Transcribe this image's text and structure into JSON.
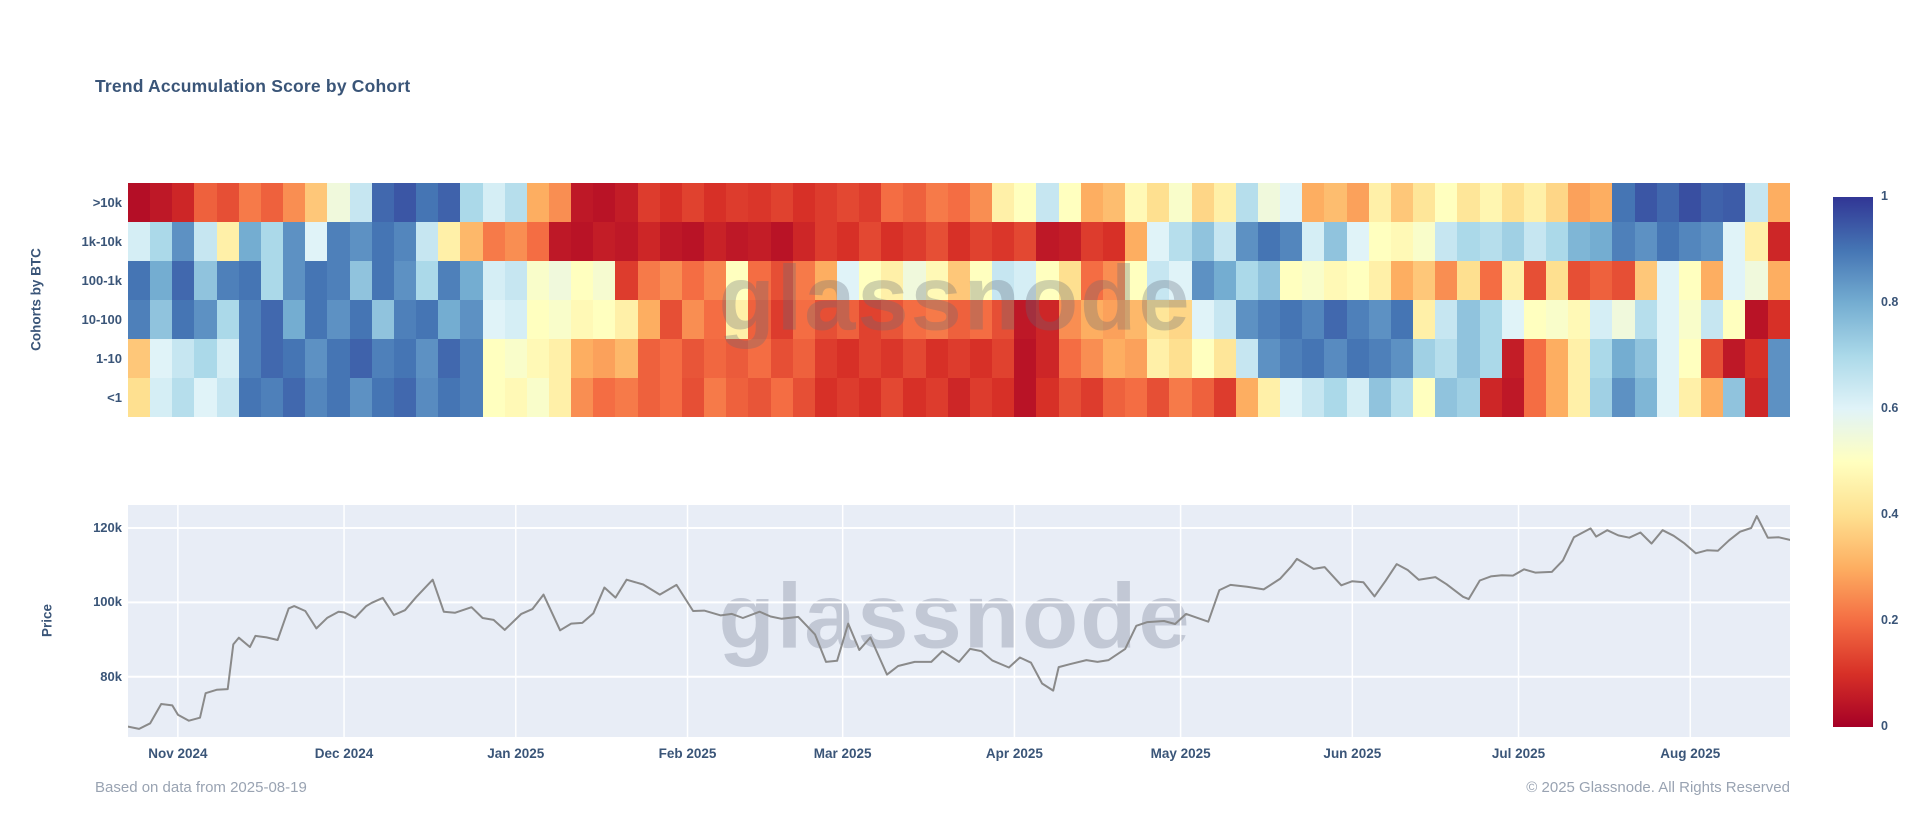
{
  "title": "Trend Accumulation Score by Cohort",
  "watermark": "glassnode",
  "footer": {
    "left": "Based on data from 2025-08-19",
    "right": "© 2025 Glassnode. All Rights Reserved"
  },
  "colors": {
    "text": "#3a5578",
    "footer_text": "#99a3b2",
    "price_line": "#8a8a8a",
    "price_panel_bg": "#e8edf6",
    "gridline": "#ffffff",
    "colormap": "RdYlBu (0=dark red, 1=dark blue)"
  },
  "heatmap_axis": {
    "y_title": "Cohorts by BTC",
    "cohorts": [
      ">10k",
      "1k-10k",
      "100-1k",
      "10-100",
      "1-10",
      "<1"
    ]
  },
  "price_axis": {
    "y_title": "Price",
    "y_ticks": [
      {
        "label": "120k",
        "value": 120
      },
      {
        "label": "100k",
        "value": 100
      },
      {
        "label": "80k",
        "value": 80
      }
    ],
    "x_ticks": [
      {
        "label": "Nov 2024",
        "day": 9
      },
      {
        "label": "Dec 2024",
        "day": 39
      },
      {
        "label": "Jan 2025",
        "day": 70
      },
      {
        "label": "Feb 2025",
        "day": 101
      },
      {
        "label": "Mar 2025",
        "day": 129
      },
      {
        "label": "Apr 2025",
        "day": 160
      },
      {
        "label": "May 2025",
        "day": 190
      },
      {
        "label": "Jun 2025",
        "day": 221
      },
      {
        "label": "Jul 2025",
        "day": 251
      },
      {
        "label": "Aug 2025",
        "day": 282
      }
    ]
  },
  "colorbar": {
    "ticks": [
      {
        "label": "1",
        "value": 1
      },
      {
        "label": "0.8",
        "value": 0.8
      },
      {
        "label": "0.6",
        "value": 0.6
      },
      {
        "label": "0.4",
        "value": 0.4
      },
      {
        "label": "0.2",
        "value": 0.2
      },
      {
        "label": "0",
        "value": 0
      }
    ],
    "zmin": 0,
    "zmax": 1
  },
  "chart_data": [
    {
      "type": "heatmap",
      "title": "Trend Accumulation Score by Cohort",
      "ylabel": "Cohorts by BTC",
      "x_range": [
        "2024-10-23",
        "2025-08-19"
      ],
      "zlim": [
        0,
        1
      ],
      "legend_position": "right colorbar",
      "rows": [
        ">10k",
        "1k-10k",
        "100-1k",
        "10-100",
        "1-10",
        "<1"
      ],
      "columns": 75,
      "values": {
        ">10k": [
          0.03,
          0.05,
          0.08,
          0.18,
          0.15,
          0.22,
          0.18,
          0.25,
          0.35,
          0.55,
          0.65,
          0.92,
          0.95,
          0.9,
          0.93,
          0.7,
          0.62,
          0.68,
          0.3,
          0.25,
          0.05,
          0.04,
          0.06,
          0.12,
          0.1,
          0.13,
          0.1,
          0.12,
          0.11,
          0.13,
          0.1,
          0.12,
          0.14,
          0.12,
          0.2,
          0.18,
          0.22,
          0.2,
          0.25,
          0.45,
          0.5,
          0.65,
          0.5,
          0.3,
          0.33,
          0.48,
          0.4,
          0.52,
          0.38,
          0.45,
          0.68,
          0.55,
          0.6,
          0.3,
          0.33,
          0.28,
          0.45,
          0.35,
          0.42,
          0.5,
          0.42,
          0.47,
          0.4,
          0.45,
          0.38,
          0.28,
          0.3,
          0.9,
          0.95,
          0.92,
          0.96,
          0.93,
          0.94,
          0.65,
          0.3
        ],
        "1k-10k": [
          0.62,
          0.7,
          0.85,
          0.65,
          0.45,
          0.8,
          0.7,
          0.85,
          0.6,
          0.88,
          0.85,
          0.9,
          0.87,
          0.65,
          0.45,
          0.32,
          0.22,
          0.25,
          0.2,
          0.05,
          0.04,
          0.06,
          0.05,
          0.08,
          0.05,
          0.04,
          0.07,
          0.05,
          0.06,
          0.04,
          0.08,
          0.12,
          0.1,
          0.14,
          0.1,
          0.12,
          0.15,
          0.1,
          0.13,
          0.11,
          0.14,
          0.05,
          0.06,
          0.12,
          0.1,
          0.3,
          0.6,
          0.68,
          0.75,
          0.65,
          0.85,
          0.9,
          0.87,
          0.62,
          0.75,
          0.6,
          0.5,
          0.48,
          0.52,
          0.65,
          0.7,
          0.68,
          0.72,
          0.65,
          0.7,
          0.78,
          0.8,
          0.88,
          0.85,
          0.9,
          0.87,
          0.85,
          0.6,
          0.45,
          0.08
        ],
        "100-1k": [
          0.9,
          0.8,
          0.92,
          0.75,
          0.88,
          0.9,
          0.7,
          0.85,
          0.9,
          0.88,
          0.75,
          0.9,
          0.85,
          0.7,
          0.88,
          0.8,
          0.62,
          0.65,
          0.52,
          0.55,
          0.5,
          0.53,
          0.12,
          0.22,
          0.25,
          0.2,
          0.24,
          0.5,
          0.2,
          0.15,
          0.22,
          0.3,
          0.6,
          0.5,
          0.45,
          0.55,
          0.48,
          0.35,
          0.5,
          0.65,
          0.62,
          0.5,
          0.4,
          0.2,
          0.25,
          0.5,
          0.65,
          0.6,
          0.85,
          0.8,
          0.7,
          0.75,
          0.5,
          0.52,
          0.48,
          0.5,
          0.45,
          0.3,
          0.35,
          0.25,
          0.4,
          0.2,
          0.45,
          0.15,
          0.4,
          0.15,
          0.18,
          0.15,
          0.35,
          0.6,
          0.5,
          0.3,
          0.6,
          0.55,
          0.3
        ],
        "10-100": [
          0.88,
          0.75,
          0.9,
          0.85,
          0.7,
          0.88,
          0.92,
          0.8,
          0.9,
          0.85,
          0.9,
          0.75,
          0.88,
          0.9,
          0.8,
          0.85,
          0.6,
          0.62,
          0.5,
          0.52,
          0.48,
          0.5,
          0.45,
          0.3,
          0.15,
          0.25,
          0.2,
          0.45,
          0.18,
          0.12,
          0.2,
          0.15,
          0.18,
          0.13,
          0.16,
          0.2,
          0.22,
          0.18,
          0.2,
          0.15,
          0.05,
          0.08,
          0.25,
          0.3,
          0.28,
          0.32,
          0.42,
          0.38,
          0.6,
          0.65,
          0.85,
          0.88,
          0.9,
          0.87,
          0.92,
          0.88,
          0.85,
          0.9,
          0.45,
          0.65,
          0.75,
          0.7,
          0.6,
          0.5,
          0.52,
          0.48,
          0.62,
          0.55,
          0.68,
          0.6,
          0.52,
          0.65,
          0.5,
          0.04,
          0.1
        ],
        "1-10": [
          0.35,
          0.6,
          0.65,
          0.7,
          0.62,
          0.88,
          0.92,
          0.9,
          0.85,
          0.9,
          0.93,
          0.88,
          0.9,
          0.85,
          0.92,
          0.88,
          0.5,
          0.52,
          0.48,
          0.45,
          0.3,
          0.28,
          0.32,
          0.18,
          0.2,
          0.16,
          0.19,
          0.17,
          0.2,
          0.15,
          0.18,
          0.12,
          0.1,
          0.13,
          0.11,
          0.14,
          0.1,
          0.12,
          0.1,
          0.13,
          0.04,
          0.08,
          0.2,
          0.25,
          0.3,
          0.28,
          0.45,
          0.4,
          0.5,
          0.42,
          0.65,
          0.85,
          0.88,
          0.9,
          0.86,
          0.9,
          0.88,
          0.85,
          0.72,
          0.68,
          0.75,
          0.7,
          0.06,
          0.2,
          0.3,
          0.45,
          0.7,
          0.8,
          0.75,
          0.6,
          0.5,
          0.15,
          0.05,
          0.1,
          0.85
        ],
        "<1": [
          0.4,
          0.62,
          0.68,
          0.6,
          0.65,
          0.9,
          0.88,
          0.92,
          0.87,
          0.9,
          0.85,
          0.9,
          0.92,
          0.86,
          0.9,
          0.88,
          0.5,
          0.48,
          0.52,
          0.45,
          0.25,
          0.2,
          0.22,
          0.18,
          0.2,
          0.15,
          0.22,
          0.18,
          0.16,
          0.2,
          0.15,
          0.1,
          0.12,
          0.1,
          0.14,
          0.1,
          0.12,
          0.08,
          0.12,
          0.1,
          0.04,
          0.1,
          0.15,
          0.12,
          0.18,
          0.2,
          0.15,
          0.22,
          0.18,
          0.12,
          0.3,
          0.45,
          0.6,
          0.65,
          0.7,
          0.62,
          0.75,
          0.68,
          0.5,
          0.75,
          0.72,
          0.08,
          0.05,
          0.2,
          0.3,
          0.45,
          0.72,
          0.85,
          0.78,
          0.6,
          0.45,
          0.3,
          0.75,
          0.08,
          0.85
        ]
      }
    },
    {
      "type": "line",
      "name": "Price",
      "ylabel": "Price",
      "ylim": [
        63,
        127
      ],
      "x_unit": "days since 2024-10-23",
      "x": [
        0,
        2,
        4,
        6,
        8,
        9,
        11,
        13,
        14,
        16,
        18,
        19,
        20,
        22,
        23,
        25,
        27,
        29,
        30,
        32,
        34,
        36,
        38,
        39,
        41,
        43,
        44,
        46,
        48,
        50,
        52,
        55,
        57,
        59,
        62,
        64,
        66,
        68,
        71,
        73,
        75,
        78,
        80,
        82,
        84,
        86,
        88,
        90,
        93,
        96,
        99,
        102,
        104,
        107,
        109,
        111,
        114,
        116,
        118,
        121,
        124,
        126,
        128,
        130,
        132,
        134,
        137,
        139,
        142,
        145,
        147,
        150,
        152,
        154,
        156,
        159,
        161,
        163,
        165,
        167,
        168,
        170,
        173,
        175,
        177,
        180,
        182,
        184,
        187,
        189,
        191,
        195,
        197,
        199,
        202,
        205,
        208,
        210,
        211,
        214,
        216,
        219,
        221,
        223,
        225,
        227,
        229,
        231,
        233,
        236,
        238,
        241,
        242,
        244,
        246,
        248,
        250,
        252,
        254,
        257,
        259,
        261,
        264,
        265,
        267,
        269,
        271,
        273,
        275,
        277,
        279,
        281,
        283,
        285,
        287,
        289,
        291,
        293,
        294,
        296,
        298,
        300
      ],
      "values_usd_k": [
        66.6,
        66.0,
        67.5,
        72.7,
        72.3,
        69.8,
        68.2,
        69.0,
        75.6,
        76.5,
        76.7,
        88.7,
        90.5,
        88.0,
        91.0,
        90.6,
        89.9,
        98.4,
        99.0,
        97.7,
        93.0,
        95.9,
        97.5,
        97.3,
        95.9,
        99.0,
        99.9,
        101.2,
        96.6,
        97.9,
        101.4,
        106.1,
        97.5,
        97.2,
        98.7,
        95.8,
        95.3,
        92.6,
        96.9,
        98.2,
        102.1,
        92.5,
        94.3,
        94.5,
        97.1,
        104.0,
        101.3,
        106.1,
        104.8,
        102.1,
        104.7,
        97.7,
        97.8,
        96.5,
        96.9,
        95.8,
        97.5,
        96.2,
        95.6,
        96.1,
        91.4,
        84.0,
        84.3,
        94.3,
        87.2,
        90.6,
        80.6,
        82.9,
        84.0,
        84.0,
        86.9,
        84.0,
        87.5,
        86.9,
        84.4,
        82.5,
        85.2,
        83.8,
        78.2,
        76.3,
        82.6,
        83.4,
        84.5,
        84.0,
        84.5,
        87.5,
        93.7,
        94.7,
        95.0,
        94.2,
        96.9,
        94.8,
        103.3,
        104.7,
        104.2,
        103.5,
        106.4,
        109.7,
        111.7,
        109.0,
        109.5,
        104.6,
        105.7,
        105.4,
        101.6,
        105.8,
        110.3,
        108.7,
        106.1,
        106.8,
        104.9,
        101.5,
        100.9,
        105.9,
        107.0,
        107.3,
        107.2,
        108.9,
        108.0,
        108.2,
        111.3,
        117.5,
        119.9,
        117.7,
        119.4,
        118.0,
        117.4,
        118.8,
        115.8,
        119.4,
        117.9,
        115.8,
        113.2,
        114.0,
        113.9,
        116.7,
        119.0,
        120.0,
        123.2,
        117.4,
        117.5,
        116.8
      ]
    }
  ]
}
